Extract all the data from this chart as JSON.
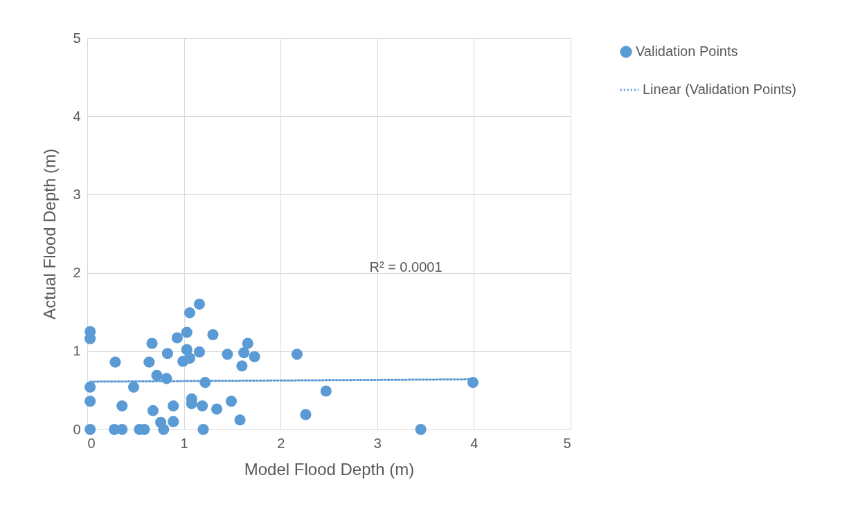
{
  "chart_data": {
    "type": "scatter",
    "xlabel": "Model Flood Depth (m)",
    "ylabel": "Actual Flood Depth (m)",
    "xlim": [
      0,
      5
    ],
    "ylim": [
      0,
      5
    ],
    "xticks": [
      0,
      1,
      2,
      3,
      4,
      5
    ],
    "yticks": [
      0,
      1,
      2,
      3,
      4,
      5
    ],
    "grid": true,
    "legend": "right",
    "annotations": [
      "R² = 0.0001"
    ],
    "series": [
      {
        "name": "Validation Points",
        "color": "#5b9bd5",
        "marker": "circle",
        "x": [
          0.03,
          0.03,
          0.03,
          0.03,
          0.03,
          0.29,
          0.28,
          0.36,
          0.36,
          0.48,
          0.54,
          0.59,
          0.64,
          0.67,
          0.68,
          0.72,
          0.76,
          0.79,
          0.82,
          0.83,
          0.89,
          0.89,
          0.93,
          0.99,
          1.03,
          1.03,
          1.06,
          1.06,
          1.08,
          1.08,
          1.16,
          1.16,
          1.19,
          1.2,
          1.22,
          1.3,
          1.34,
          1.45,
          1.49,
          1.58,
          1.6,
          1.62,
          1.66,
          1.73,
          2.17,
          2.26,
          2.47,
          3.45,
          3.99
        ],
        "values": [
          1.25,
          1.16,
          0.54,
          0.36,
          0,
          0.86,
          0,
          0.3,
          0,
          0.54,
          0,
          0,
          0.86,
          1.1,
          0.24,
          0.69,
          0.09,
          0,
          0.65,
          0.97,
          0.3,
          0.1,
          1.17,
          0.87,
          1.24,
          1.02,
          1.49,
          0.91,
          0.39,
          0.33,
          1.6,
          0.99,
          0.3,
          0,
          0.6,
          1.21,
          0.26,
          0.96,
          0.36,
          0.12,
          0.81,
          0.98,
          1.1,
          0.93,
          0.96,
          0.19,
          0.49,
          0,
          0.6
        ]
      },
      {
        "name": "Linear (Validation Points)",
        "type": "line",
        "line_style": "dotted",
        "marker": "none",
        "color": "#5b9bd5",
        "x": [
          0.03,
          3.99
        ],
        "values": [
          0.61,
          0.64
        ]
      }
    ]
  }
}
